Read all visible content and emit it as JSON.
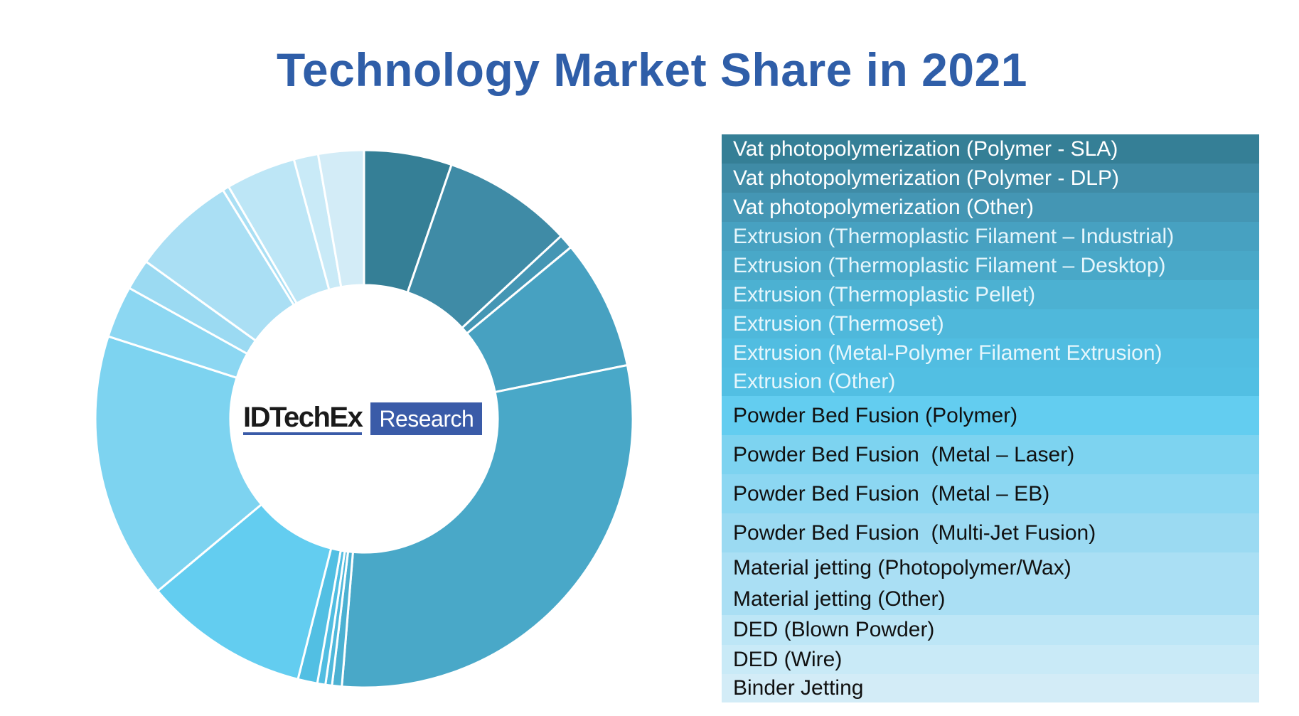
{
  "chart_data": {
    "type": "pie",
    "variant": "donut",
    "title": "Technology Market Share in 2021",
    "center_logo": {
      "brand": "IDTechEx",
      "tag": "Research"
    },
    "legend_placement": "right",
    "slices": [
      {
        "label": "Vat photopolymerization (Polymer - SLA)",
        "value": 5.4,
        "color": "#357f96",
        "text_color": "#ffffff"
      },
      {
        "label": "Vat photopolymerization (Polymer - DLP)",
        "value": 8.0,
        "color": "#3f8ba6",
        "text_color": "#ffffff"
      },
      {
        "label": "Vat photopolymerization (Other)",
        "value": 0.9,
        "color": "#4496b4",
        "text_color": "#ffffff"
      },
      {
        "label": "Extrusion (Thermoplastic Filament – Industrial)",
        "value": 8.0,
        "color": "#47a1c1",
        "text_color": "#e6f6fc"
      },
      {
        "label": "Extrusion (Thermoplastic Filament – Desktop)",
        "value": 30.2,
        "color": "#49a8c8",
        "text_color": "#e6f6fc"
      },
      {
        "label": "Extrusion (Thermoplastic Pellet)",
        "value": 0.6,
        "color": "#4cb1d2",
        "text_color": "#e6f6fc"
      },
      {
        "label": "Extrusion (Thermoset)",
        "value": 0.4,
        "color": "#4fb8db",
        "text_color": "#e6f6fc"
      },
      {
        "label": "Extrusion (Metal-Polymer Filament Extrusion)",
        "value": 0.5,
        "color": "#51bde1",
        "text_color": "#e6f6fc"
      },
      {
        "label": "Extrusion (Other)",
        "value": 1.2,
        "color": "#52bfe3",
        "text_color": "#e6f6fc"
      },
      {
        "label": "Powder Bed Fusion (Polymer)",
        "value": 10.2,
        "color": "#63cdf0",
        "text_color": "#111111"
      },
      {
        "label": "Powder Bed Fusion  (Metal – Laser)",
        "value": 16.4,
        "color": "#7dd3f0",
        "text_color": "#111111"
      },
      {
        "label": "Powder Bed Fusion  (Metal – EB)",
        "value": 3.2,
        "color": "#8cd7f2",
        "text_color": "#111111"
      },
      {
        "label": "Powder Bed Fusion  (Multi-Jet Fusion)",
        "value": 1.9,
        "color": "#9bdaf2",
        "text_color": "#111111"
      },
      {
        "label": "Material jetting (Photopolymer/Wax)",
        "value": 6.4,
        "color": "#aadff4",
        "text_color": "#111111"
      },
      {
        "label": "Material jetting (Other)",
        "value": 0.4,
        "color": "#aadff4",
        "text_color": "#111111"
      },
      {
        "label": "DED (Blown Powder)",
        "value": 4.3,
        "color": "#bde6f6",
        "text_color": "#111111"
      },
      {
        "label": "DED (Wire)",
        "value": 1.5,
        "color": "#c9eaf7",
        "text_color": "#111111"
      },
      {
        "label": "Binder Jetting",
        "value": 2.8,
        "color": "#d3ecf7",
        "text_color": "#111111"
      }
    ]
  }
}
